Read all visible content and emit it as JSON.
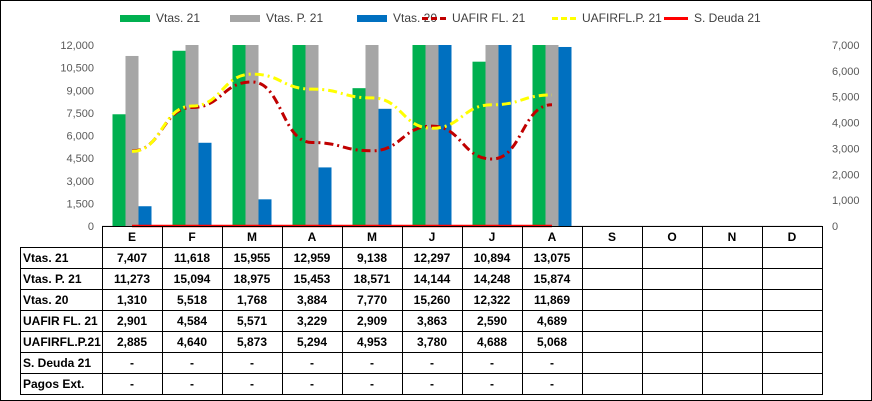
{
  "chart_data": {
    "type": "bar",
    "categories": [
      "E",
      "F",
      "M",
      "A",
      "M",
      "J",
      "J",
      "A",
      "S",
      "O",
      "N",
      "D"
    ],
    "bar_series": [
      {
        "name": "Vtas. 21",
        "color": "#00B050",
        "values": [
          7407,
          11618,
          15955,
          12959,
          9138,
          12297,
          10894,
          13075,
          null,
          null,
          null,
          null
        ]
      },
      {
        "name": "Vtas. P. 21",
        "color": "#A6A6A6",
        "values": [
          11273,
          15094,
          18975,
          15453,
          18571,
          14144,
          14248,
          15874,
          null,
          null,
          null,
          null
        ]
      },
      {
        "name": "Vtas. 20",
        "color": "#0070C0",
        "values": [
          1310,
          5518,
          1768,
          3884,
          7770,
          15260,
          12322,
          11869,
          null,
          null,
          null,
          null
        ]
      }
    ],
    "line_series": [
      {
        "name": "UAFIR FL. 21",
        "color": "#C00000",
        "style": "dashdot",
        "values": [
          2901,
          4584,
          5571,
          3229,
          2909,
          3863,
          2590,
          4689,
          null,
          null,
          null,
          null
        ]
      },
      {
        "name": "UAFIRFL.P. 21",
        "color": "#FFFF00",
        "style": "dashdot",
        "values": [
          2885,
          4640,
          5873,
          5294,
          4953,
          3780,
          4688,
          5068,
          null,
          null,
          null,
          null
        ]
      },
      {
        "name": "S. Deuda 21",
        "color": "#FF0000",
        "style": "solid",
        "values": [
          0,
          0,
          0,
          0,
          0,
          0,
          0,
          0,
          null,
          null,
          null,
          null
        ]
      }
    ],
    "y_left": {
      "min": 0,
      "max": 12000,
      "ticks": [
        "0",
        "1,500",
        "3,000",
        "4,500",
        "6,000",
        "7,500",
        "9,000",
        "10,500",
        "12,000"
      ]
    },
    "y_right": {
      "min": 0,
      "max": 7000,
      "ticks": [
        "0",
        "1,000",
        "2,000",
        "3,000",
        "4,000",
        "5,000",
        "6,000",
        "7,000"
      ]
    },
    "legend_position": "top",
    "legend_labels": [
      "Vtas. 21",
      "Vtas. P. 21",
      "Vtas. 20",
      "UAFIR FL. 21",
      "UAFIRFL.P. 21",
      "S. Deuda 21"
    ]
  },
  "table": {
    "rows": [
      {
        "label": "Vtas. 21",
        "cells": [
          "7,407",
          "11,618",
          "15,955",
          "12,959",
          "9,138",
          "12,297",
          "10,894",
          "13,075",
          "",
          "",
          "",
          ""
        ]
      },
      {
        "label": "Vtas. P. 21",
        "cells": [
          "11,273",
          "15,094",
          "18,975",
          "15,453",
          "18,571",
          "14,144",
          "14,248",
          "15,874",
          "",
          "",
          "",
          ""
        ]
      },
      {
        "label": "Vtas. 20",
        "cells": [
          "1,310",
          "5,518",
          "1,768",
          "3,884",
          "7,770",
          "15,260",
          "12,322",
          "11,869",
          "",
          "",
          "",
          ""
        ]
      },
      {
        "label": "UAFIR FL. 21",
        "cells": [
          "2,901",
          "4,584",
          "5,571",
          "3,229",
          "2,909",
          "3,863",
          "2,590",
          "4,689",
          "",
          "",
          "",
          ""
        ]
      },
      {
        "label": "UAFIRFL.P.21",
        "cells": [
          "2,885",
          "4,640",
          "5,873",
          "5,294",
          "4,953",
          "3,780",
          "4,688",
          "5,068",
          "",
          "",
          "",
          ""
        ]
      },
      {
        "label": "S. Deuda 21",
        "cells": [
          "-",
          "-",
          "-",
          "-",
          "-",
          "-",
          "-",
          "-",
          "",
          "",
          "",
          ""
        ]
      },
      {
        "label": "Pagos Ext.",
        "cells": [
          "-",
          "-",
          "-",
          "-",
          "-",
          "-",
          "-",
          "-",
          "",
          "",
          "",
          ""
        ]
      }
    ]
  }
}
